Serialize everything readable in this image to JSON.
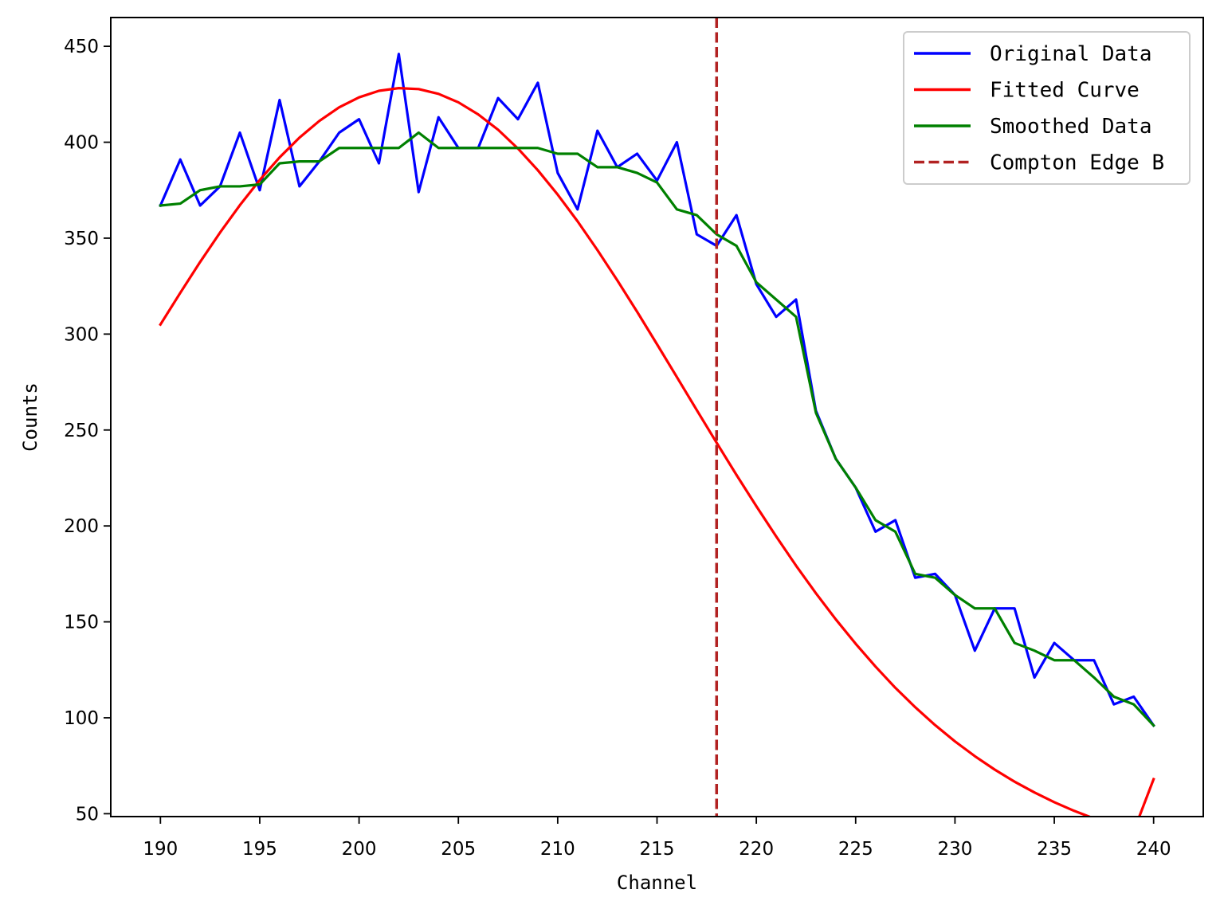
{
  "chart_data": {
    "type": "line",
    "title": "",
    "xlabel": "Channel",
    "ylabel": "Counts",
    "xlim": [
      187.5,
      242.5
    ],
    "ylim": [
      48.5,
      465
    ],
    "xticks": [
      190,
      195,
      200,
      205,
      210,
      215,
      220,
      225,
      230,
      235,
      240
    ],
    "yticks": [
      50,
      100,
      150,
      200,
      250,
      300,
      350,
      400,
      450
    ],
    "grid": false,
    "legend_position": "top-right",
    "x": [
      190,
      191,
      192,
      193,
      194,
      195,
      196,
      197,
      198,
      199,
      200,
      201,
      202,
      203,
      204,
      205,
      206,
      207,
      208,
      209,
      210,
      211,
      212,
      213,
      214,
      215,
      216,
      217,
      218,
      219,
      220,
      221,
      222,
      223,
      224,
      225,
      226,
      227,
      228,
      229,
      230,
      231,
      232,
      233,
      234,
      235,
      236,
      237,
      238,
      239,
      240
    ],
    "series": [
      {
        "name": "Original Data",
        "color": "#0000ff",
        "style": "solid",
        "values": [
          367,
          391,
          367,
          377,
          405,
          375,
          422,
          377,
          390,
          405,
          412,
          389,
          446,
          374,
          413,
          397,
          397,
          423,
          412,
          431,
          384,
          365,
          406,
          387,
          394,
          380,
          400,
          352,
          346,
          362,
          326,
          309,
          318,
          260,
          235,
          220,
          197,
          203,
          173,
          175,
          164,
          135,
          157,
          157,
          121,
          139,
          130,
          130,
          107,
          111,
          96
        ]
      },
      {
        "name": "Fitted Curve",
        "color": "#ff0000",
        "style": "solid",
        "values": [
          305,
          321.5,
          337.6,
          352.9,
          367.2,
          380.3,
          392.1,
          402.4,
          411.1,
          418.2,
          423.4,
          426.8,
          428.2,
          427.7,
          425.2,
          420.8,
          414.5,
          406.5,
          396.7,
          385.4,
          372.7,
          358.8,
          343.8,
          328,
          311.6,
          294.7,
          277.6,
          260.4,
          243.4,
          226.6,
          210.3,
          194.5,
          179.3,
          164.9,
          151.3,
          138.6,
          126.7,
          115.6,
          105.5,
          96.2,
          87.7,
          80,
          73,
          66.7,
          61.1,
          56,
          51.5,
          47.5,
          44,
          40.9,
          68
        ]
      },
      {
        "name": "Smoothed Data",
        "color": "#008000",
        "style": "solid",
        "values": [
          367,
          368,
          375,
          377,
          377,
          378,
          389,
          390,
          390,
          397,
          397,
          397,
          397,
          405,
          397,
          397,
          397,
          397,
          397,
          397,
          394,
          394,
          387,
          387,
          384,
          379,
          365,
          362,
          352,
          346,
          327,
          318,
          309,
          259,
          235,
          220,
          203,
          197,
          175,
          173,
          164,
          157,
          157,
          139,
          135,
          130,
          130,
          121,
          111,
          107,
          96
        ]
      },
      {
        "name": "Compton Edge B",
        "color": "#b22222",
        "style": "dashed",
        "vline_x": 218
      }
    ]
  }
}
